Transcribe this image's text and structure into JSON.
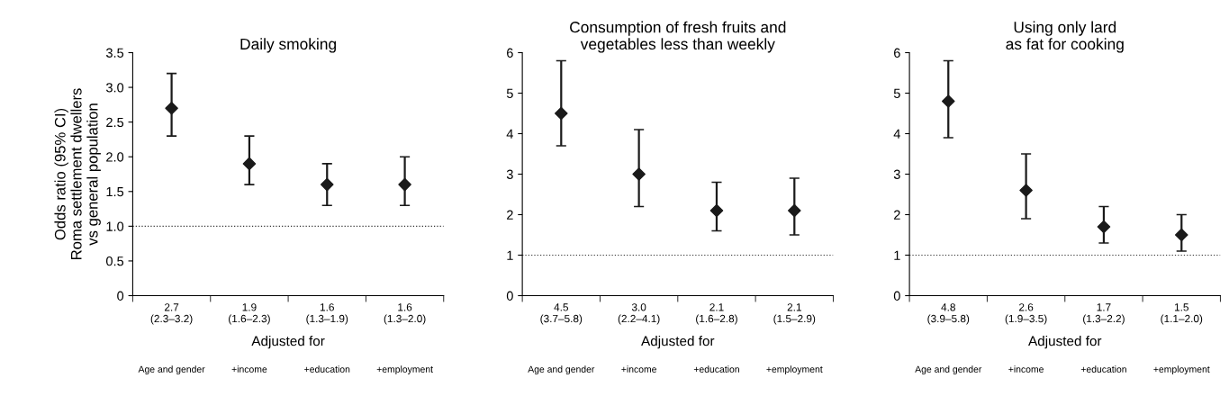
{
  "chart_data": [
    {
      "type": "scatter",
      "title": "Daily smoking",
      "ylabel": "Odds ratio (95% CI)\nRoma settlement dwellers\nvs general population",
      "xlabel": "Adjusted for",
      "categories": [
        "Age and gender",
        "+income",
        "+education",
        "+employment"
      ],
      "values": [
        2.7,
        1.9,
        1.6,
        1.6
      ],
      "errors": [
        [
          2.3,
          3.2
        ],
        [
          1.6,
          2.3
        ],
        [
          1.3,
          1.9
        ],
        [
          1.3,
          2.0
        ]
      ],
      "value_labels": [
        "2.7\n(2.3–3.2)",
        "1.9\n(1.6–2.3)",
        "1.6\n(1.3–1.9)",
        "1.6\n(1.3–2.0)"
      ],
      "color": "#1a1a1a",
      "marker": "diamond",
      "ylim": [
        0,
        3.5
      ],
      "yticks": [
        0,
        0.5,
        {
          "value": 1,
          "label": "1.0"
        },
        1.5,
        {
          "value": 2,
          "label": "2.0"
        },
        2.5,
        {
          "value": 3,
          "label": "3.0"
        },
        3.5
      ],
      "ref_lines": [
        {
          "axis": "y",
          "value": 1,
          "line_style": "dotted",
          "color": "#333333"
        }
      ]
    },
    {
      "type": "scatter",
      "title": "Consumption of fresh fruits and\nvegetables less than weekly",
      "xlabel": "Adjusted for",
      "categories": [
        "Age and gender",
        "+income",
        "+education",
        "+employment"
      ],
      "values": [
        4.5,
        3.0,
        2.1,
        2.1
      ],
      "errors": [
        [
          3.7,
          5.8
        ],
        [
          2.2,
          4.1
        ],
        [
          1.6,
          2.8
        ],
        [
          1.5,
          2.9
        ]
      ],
      "value_labels": [
        "4.5\n(3.7–5.8)",
        "3.0\n(2.2–4.1)",
        "2.1\n(1.6–2.8)",
        "2.1\n(1.5–2.9)"
      ],
      "color": "#1a1a1a",
      "marker": "diamond",
      "ylim": [
        0,
        6
      ],
      "yticks": [
        0,
        1,
        2,
        3,
        4,
        5,
        6
      ],
      "ref_lines": [
        {
          "axis": "y",
          "value": 1,
          "line_style": "dotted",
          "color": "#333333"
        }
      ]
    },
    {
      "type": "scatter",
      "title": "Using only lard\nas fat for cooking",
      "xlabel": "Adjusted for",
      "categories": [
        "Age and gender",
        "+income",
        "+education",
        "+employment"
      ],
      "values": [
        4.8,
        2.6,
        1.7,
        1.5
      ],
      "errors": [
        [
          3.9,
          5.8
        ],
        [
          1.9,
          3.5
        ],
        [
          1.3,
          2.2
        ],
        [
          1.1,
          2.0
        ]
      ],
      "value_labels": [
        "4.8\n(3.9–5.8)",
        "2.6\n(1.9–3.5)",
        "1.7\n(1.3–2.2)",
        "1.5\n(1.1–2.0)"
      ],
      "color": "#1a1a1a",
      "marker": "diamond",
      "ylim": [
        0,
        6
      ],
      "yticks": [
        0,
        1,
        2,
        3,
        4,
        5,
        6
      ],
      "ref_lines": [
        {
          "axis": "y",
          "value": 1,
          "line_style": "dotted",
          "color": "#333333"
        }
      ]
    }
  ]
}
